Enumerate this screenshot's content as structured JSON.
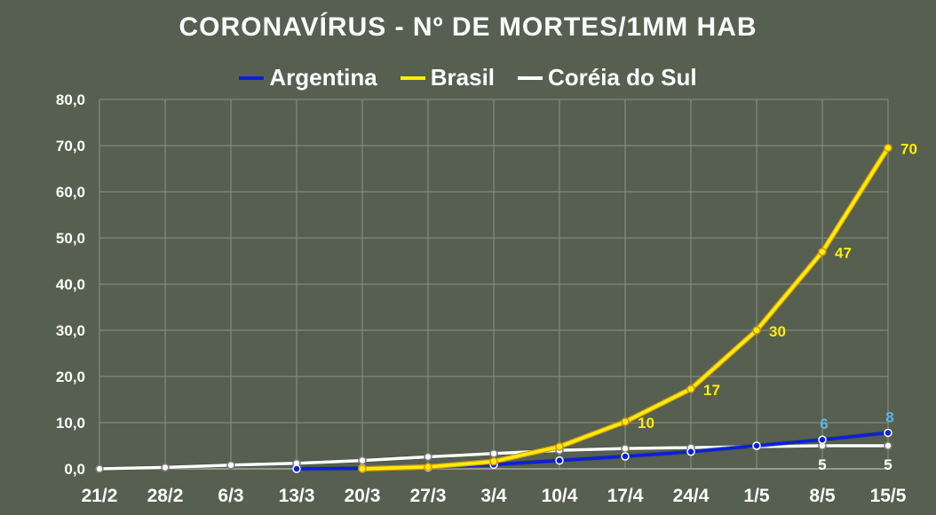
{
  "chart_data": {
    "type": "line",
    "title": "CORONAVÍRUS - Nº DE MORTES/1MM HAB",
    "xlabel": "",
    "ylabel": "",
    "ylim": [
      0,
      80
    ],
    "grid": true,
    "legend": "top-center",
    "x_ticks": [
      "21/2",
      "28/2",
      "6/3",
      "13/3",
      "20/3",
      "27/3",
      "3/4",
      "10/4",
      "17/4",
      "24/4",
      "1/5",
      "8/5",
      "15/5"
    ],
    "y_ticks": [
      "0,0",
      "10,0",
      "20,0",
      "30,0",
      "40,0",
      "50,0",
      "60,0",
      "70,0",
      "80,0"
    ],
    "series": [
      {
        "name": "Argentina",
        "color": "#0a1fe0",
        "points": [
          [
            "13/3",
            0.0
          ],
          [
            "20/3",
            0.1
          ],
          [
            "27/3",
            0.3
          ],
          [
            "3/4",
            0.9
          ],
          [
            "10/4",
            1.8
          ],
          [
            "17/4",
            2.7
          ],
          [
            "24/4",
            3.7
          ],
          [
            "1/5",
            5.0
          ],
          [
            "8/5",
            6.3
          ],
          [
            "15/5",
            7.8
          ]
        ],
        "labels": [
          {
            "x": "8/5",
            "text": "6"
          },
          {
            "x": "15/5",
            "text": "8"
          }
        ],
        "label_color": "#5ab4ee"
      },
      {
        "name": "Brasil",
        "color": "#ffee00",
        "points": [
          [
            "20/3",
            0.0
          ],
          [
            "27/3",
            0.4
          ],
          [
            "3/4",
            1.6
          ],
          [
            "10/4",
            4.8
          ],
          [
            "17/4",
            10.2
          ],
          [
            "24/4",
            17.3
          ],
          [
            "1/5",
            30.0
          ],
          [
            "8/5",
            47.0
          ],
          [
            "15/5",
            69.5
          ]
        ],
        "labels": [
          {
            "x": "17/4",
            "text": "10"
          },
          {
            "x": "24/4",
            "text": "17"
          },
          {
            "x": "1/5",
            "text": "30"
          },
          {
            "x": "8/5",
            "text": "47"
          },
          {
            "x": "15/5",
            "text": "70"
          }
        ],
        "label_color": "#ffee00"
      },
      {
        "name": "Coréia do Sul",
        "color": "#ffffff",
        "points": [
          [
            "21/2",
            0.0
          ],
          [
            "28/2",
            0.3
          ],
          [
            "6/3",
            0.8
          ],
          [
            "13/3",
            1.2
          ],
          [
            "20/3",
            1.8
          ],
          [
            "27/3",
            2.6
          ],
          [
            "3/4",
            3.3
          ],
          [
            "10/4",
            4.0
          ],
          [
            "17/4",
            4.4
          ],
          [
            "24/4",
            4.6
          ],
          [
            "1/5",
            4.8
          ],
          [
            "8/5",
            5.0
          ],
          [
            "15/5",
            5.0
          ]
        ],
        "labels": [
          {
            "x": "8/5",
            "text": "5"
          },
          {
            "x": "15/5",
            "text": "5"
          }
        ],
        "label_color": "#ffffff"
      }
    ]
  }
}
